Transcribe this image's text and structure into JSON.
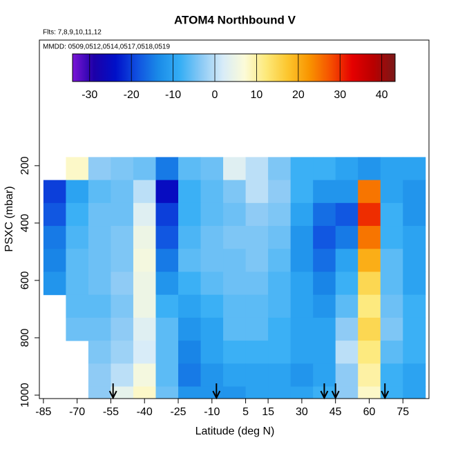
{
  "chart_data": {
    "type": "heatmap",
    "title": "ATOM4 Northbound V",
    "notes": [
      "Flts: 7,8,9,10,11,12",
      "MMDD: 0509,0512,0514,0517,0518,0519"
    ],
    "x_label": "Latitude (deg N)",
    "y_label": "PSXC (mbar)",
    "xlim": [
      -86.8,
      86.6
    ],
    "xticks": [
      -85,
      -70,
      -55,
      -40,
      -25,
      -10,
      5,
      15,
      30,
      45,
      60,
      75
    ],
    "ylim": [
      1012,
      -238
    ],
    "yticks": [
      200,
      400,
      600,
      800,
      1000
    ],
    "x_edges": [
      -85,
      -75,
      -65,
      -55,
      -45,
      -35,
      -25,
      -15,
      -5,
      5,
      15,
      25,
      35,
      45,
      55,
      65,
      75,
      85
    ],
    "y_edges": [
      170,
      250,
      330,
      410,
      490,
      570,
      650,
      730,
      810,
      890,
      970,
      1010
    ],
    "z": [
      [
        null,
        8,
        -3,
        -4,
        -5,
        -15,
        -6,
        -5,
        3,
        0,
        -4,
        -8,
        -8,
        -10,
        -12,
        -10,
        -10
      ],
      [
        -20,
        -10,
        -6,
        -5,
        0,
        -25,
        -8,
        -6,
        -4,
        0,
        -3,
        -8,
        -12,
        -12,
        25,
        -10,
        -12
      ],
      [
        -18,
        -8,
        -5,
        -5,
        3,
        -20,
        -8,
        -6,
        -5,
        -3,
        -4,
        -10,
        -16,
        -18,
        30,
        -8,
        -12
      ],
      [
        -15,
        -7,
        -5,
        -4,
        5,
        -18,
        -7,
        -5,
        -4,
        -4,
        -5,
        -12,
        -18,
        -15,
        25,
        -8,
        -10
      ],
      [
        -14,
        -6,
        -5,
        -4,
        6,
        -15,
        -6,
        -5,
        -5,
        -4,
        -6,
        -12,
        -16,
        -10,
        20,
        -6,
        -10
      ],
      [
        -12,
        -6,
        -5,
        -3,
        5,
        -12,
        -8,
        -6,
        -5,
        -5,
        -7,
        -10,
        -14,
        -8,
        15,
        -6,
        -10
      ],
      [
        null,
        -6,
        -6,
        -4,
        5,
        -8,
        -10,
        -8,
        -6,
        -6,
        -7,
        -10,
        -12,
        -6,
        12,
        -5,
        -8
      ],
      [
        null,
        -5,
        -5,
        -3,
        3,
        -6,
        -12,
        -10,
        -6,
        -6,
        -8,
        -10,
        -10,
        -3,
        15,
        -4,
        -8
      ],
      [
        null,
        null,
        -4,
        -2,
        2,
        -6,
        -14,
        -10,
        -8,
        -8,
        -8,
        -10,
        -10,
        0,
        12,
        -6,
        -8
      ],
      [
        null,
        null,
        -3,
        0,
        6,
        -6,
        -15,
        -12,
        -10,
        -10,
        -10,
        -12,
        -10,
        -3,
        10,
        -8,
        -10
      ],
      [
        null,
        null,
        -3,
        4,
        8,
        -5,
        -12,
        -12,
        -12,
        -10,
        -10,
        -10,
        -8,
        -3,
        8,
        -8,
        -10
      ]
    ],
    "clim": [
      -34.1,
      43.2
    ],
    "cticks": [
      -30,
      -20,
      -10,
      0,
      10,
      20,
      30,
      40
    ],
    "colormap": [
      "#7b16d6",
      "#1c00a8",
      "#0010c8",
      "#1050e0",
      "#1a8be8",
      "#35aef5",
      "#8ccaf5",
      "#d8ecf8",
      "#fcfbd8",
      "#fde97a",
      "#fcc62e",
      "#f99500",
      "#f55000",
      "#e50000",
      "#b80000",
      "#7a1818"
    ],
    "arrows": [
      -54,
      -8,
      40,
      45,
      67
    ]
  }
}
